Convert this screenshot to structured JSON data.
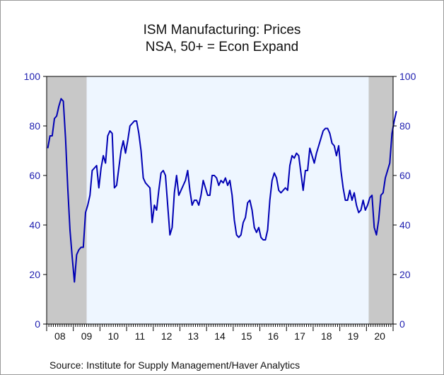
{
  "chart_data": {
    "type": "line",
    "title": "ISM Manufacturing: Prices",
    "subtitle": "NSA, 50+ = Econ Expand",
    "source": "Source:   Institute for Supply Management/Haver Analytics",
    "x_start": "2008-01",
    "frequency": "monthly",
    "x_tick_labels": [
      "08",
      "09",
      "10",
      "11",
      "12",
      "13",
      "14",
      "15",
      "16",
      "17",
      "18",
      "19",
      "20"
    ],
    "y_ticks": [
      0,
      20,
      40,
      60,
      80,
      100
    ],
    "y_tick_labels": [
      "0",
      "20",
      "40",
      "60",
      "80",
      "100"
    ],
    "ylim": [
      0,
      100
    ],
    "xlim": [
      "2008-01",
      "2020-12"
    ],
    "recessions": [
      {
        "start": "2008-01",
        "end": "2009-06"
      },
      {
        "start": "2020-02",
        "end": "2020-12"
      }
    ],
    "colors": {
      "line": "#0000b4",
      "axis_text": "#2020b0",
      "plot_bg": "#eef6ff",
      "recession": "#c8c8c8"
    },
    "series": [
      {
        "name": "",
        "values": [
          71,
          76,
          76,
          83,
          84,
          88,
          91,
          90,
          75,
          55,
          38,
          27,
          17,
          28,
          30,
          31,
          31,
          45,
          48,
          52,
          62,
          63,
          64,
          55,
          63,
          68,
          65,
          76,
          78,
          77,
          55,
          56,
          63,
          70,
          74,
          69,
          74,
          80,
          81,
          82,
          82,
          77,
          70,
          59,
          57,
          56,
          55,
          41,
          48,
          46,
          54,
          61,
          62,
          60,
          48,
          36,
          39,
          53,
          60,
          52,
          54,
          56,
          58,
          62,
          54,
          48,
          50,
          50,
          48,
          52,
          58,
          55,
          52,
          52,
          60,
          60,
          59,
          56,
          58,
          57,
          59,
          56,
          58,
          52,
          42,
          36,
          35,
          36,
          41,
          43,
          49,
          50,
          46,
          39,
          37,
          39,
          35,
          34,
          34,
          38,
          50,
          58,
          61,
          59,
          54,
          53,
          54,
          55,
          54,
          64,
          68,
          67,
          69,
          68,
          61,
          54,
          62,
          62,
          71,
          68,
          65,
          69,
          72,
          75,
          78,
          79,
          79,
          77,
          73,
          72,
          68,
          72,
          62,
          55,
          50,
          50,
          54,
          50,
          53,
          48,
          45,
          46,
          50,
          46,
          48,
          51,
          52,
          39,
          36,
          42,
          52,
          53,
          59,
          62,
          65,
          77
        ],
        "tail_values": [
          82,
          86
        ]
      }
    ]
  }
}
